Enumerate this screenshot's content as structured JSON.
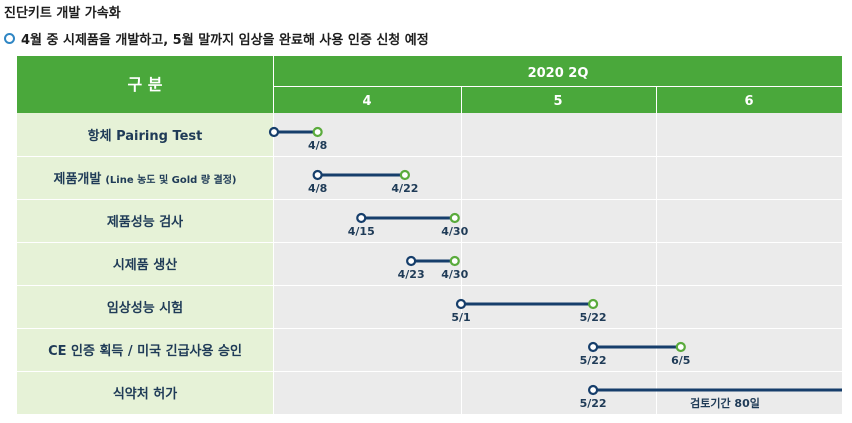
{
  "title": "진단키트 개발 가속화",
  "subtitle": "4월 중 시제품을 개발하고, 5월 말까지 임상을 완료해 사용 인증 신청 예정",
  "header": {
    "category": "구 분",
    "quarter": "2020 2Q",
    "months": [
      "4",
      "5",
      "6"
    ]
  },
  "colors": {
    "header_green": "#4aa83b",
    "label_bg": "#e6f2d7",
    "grid_bg": "#ebebeb",
    "bar": "#163e6b",
    "start_marker": "#163e6b",
    "end_marker": "#5aab3c"
  },
  "tasks": [
    {
      "name": "항체 Pairing Test",
      "start": "4/1",
      "end": "4/8",
      "end_label": "4/8"
    },
    {
      "name": "제품개발",
      "name_note": "(Line 농도 및 Gold 량 결정)",
      "start": "4/8",
      "end": "4/22",
      "start_label": "4/8",
      "end_label": "4/22"
    },
    {
      "name": "제품성능 검사",
      "start": "4/15",
      "end": "4/30",
      "start_label": "4/15",
      "end_label": "4/30"
    },
    {
      "name": "시제품 생산",
      "start": "4/23",
      "end": "4/30",
      "start_label": "4/23",
      "end_label": "4/30"
    },
    {
      "name": "임상성능 시험",
      "start": "5/1",
      "end": "5/22",
      "start_label": "5/1",
      "end_label": "5/22"
    },
    {
      "name": "CE 인증 획득 / 미국 긴급사용 승인",
      "start": "5/22",
      "end": "6/5",
      "start_label": "5/22",
      "end_label": "6/5"
    },
    {
      "name": "식약처 허가",
      "start": "5/22",
      "end": null,
      "start_label": "5/22",
      "note": "검토기간 80일"
    }
  ]
}
